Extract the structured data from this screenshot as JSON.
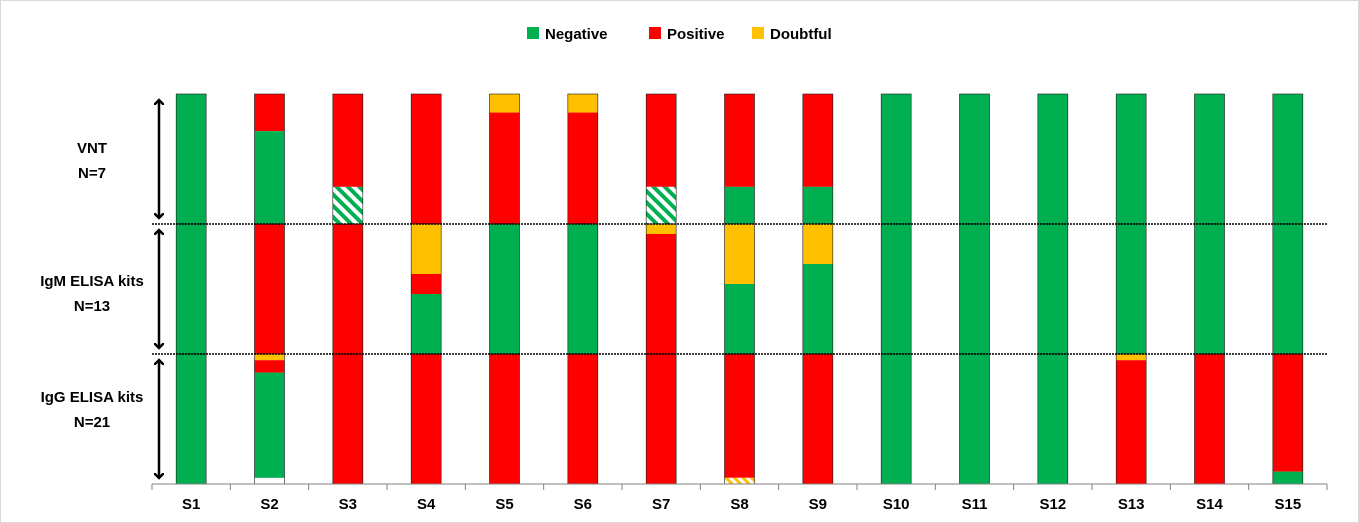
{
  "chart_data": {
    "type": "bar",
    "stacked": true,
    "legend_position": "top-center",
    "grid": false,
    "legend": [
      {
        "name": "Negative",
        "color": "#00b050"
      },
      {
        "name": "Positive",
        "color": "#ff0000"
      },
      {
        "name": "Doubtful",
        "color": "#ffc000"
      }
    ],
    "categories": [
      "S1",
      "S2",
      "S3",
      "S4",
      "S5",
      "S6",
      "S7",
      "S8",
      "S9",
      "S10",
      "S11",
      "S12",
      "S13",
      "S14",
      "S15"
    ],
    "panels": [
      {
        "label": "VNT",
        "n_label": "N=7",
        "n": 7
      },
      {
        "label": "IgM ELISA kits",
        "n_label": "N=13",
        "n": 13
      },
      {
        "label": "IgG ELISA kits",
        "n_label": "N=21",
        "n": 21
      }
    ],
    "counts_order": [
      "negative",
      "positive",
      "doubtful",
      "negative_hatched"
    ],
    "counts": [
      [
        [
          7,
          0,
          0,
          0
        ],
        [
          13,
          0,
          0,
          0
        ],
        [
          21,
          0,
          0,
          0
        ]
      ],
      [
        [
          5,
          2,
          0,
          0
        ],
        [
          0,
          13,
          0,
          0
        ],
        [
          17,
          2,
          1,
          0
        ]
      ],
      [
        [
          0,
          5,
          0,
          2
        ],
        [
          0,
          13,
          0,
          0
        ],
        [
          0,
          21,
          0,
          0
        ]
      ],
      [
        [
          0,
          7,
          0,
          0
        ],
        [
          6,
          2,
          5,
          0
        ],
        [
          0,
          21,
          0,
          0
        ]
      ],
      [
        [
          0,
          6,
          1,
          0
        ],
        [
          13,
          0,
          0,
          0
        ],
        [
          0,
          21,
          0,
          0
        ]
      ],
      [
        [
          0,
          6,
          1,
          0
        ],
        [
          13,
          0,
          0,
          0
        ],
        [
          0,
          21,
          0,
          0
        ]
      ],
      [
        [
          0,
          5,
          0,
          2
        ],
        [
          0,
          12,
          1,
          0
        ],
        [
          0,
          21,
          0,
          0
        ]
      ],
      [
        [
          2,
          5,
          0,
          0
        ],
        [
          7,
          0,
          6,
          0
        ],
        [
          0,
          20,
          0,
          1
        ]
      ],
      [
        [
          2,
          5,
          0,
          0
        ],
        [
          9,
          0,
          4,
          0
        ],
        [
          0,
          21,
          0,
          0
        ]
      ],
      [
        [
          7,
          0,
          0,
          0
        ],
        [
          13,
          0,
          0,
          0
        ],
        [
          21,
          0,
          0,
          0
        ]
      ],
      [
        [
          7,
          0,
          0,
          0
        ],
        [
          13,
          0,
          0,
          0
        ],
        [
          21,
          0,
          0,
          0
        ]
      ],
      [
        [
          7,
          0,
          0,
          0
        ],
        [
          13,
          0,
          0,
          0
        ],
        [
          21,
          0,
          0,
          0
        ]
      ],
      [
        [
          7,
          0,
          0,
          0
        ],
        [
          13,
          0,
          0,
          0
        ],
        [
          0,
          20,
          1,
          0
        ]
      ],
      [
        [
          7,
          0,
          0,
          0
        ],
        [
          13,
          0,
          0,
          0
        ],
        [
          0,
          21,
          0,
          0
        ]
      ],
      [
        [
          7,
          0,
          0,
          0
        ],
        [
          13,
          0,
          0,
          0
        ],
        [
          2,
          19,
          0,
          0
        ]
      ]
    ]
  }
}
